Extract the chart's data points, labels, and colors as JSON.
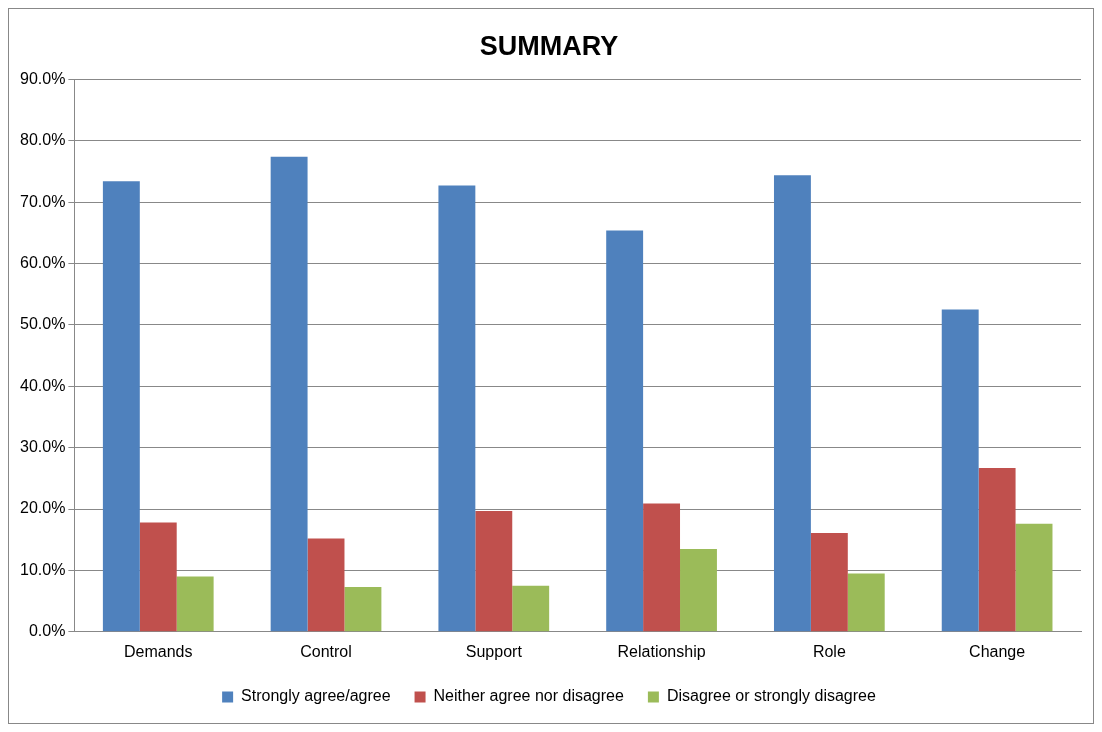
{
  "chart_data": {
    "type": "bar",
    "title": "SUMMARY",
    "categories": [
      "Demands",
      "Control",
      "Support",
      "Relationship",
      "Role",
      "Change"
    ],
    "series": [
      {
        "name": "Strongly agree/agree",
        "color": "#4f81bd",
        "values": [
          73.4,
          77.4,
          72.7,
          65.4,
          74.4,
          52.5
        ]
      },
      {
        "name": "Neither agree nor disagree",
        "color": "#c0504d",
        "values": [
          17.8,
          15.2,
          19.7,
          20.9,
          16.1,
          26.7
        ]
      },
      {
        "name": "Disagree or strongly disagree",
        "color": "#9bbb59",
        "values": [
          9.0,
          7.3,
          7.5,
          13.5,
          9.5,
          17.6
        ]
      }
    ],
    "ylim": [
      0,
      90
    ],
    "yticks": [
      {
        "value": 0,
        "label": "0.0%"
      },
      {
        "value": 10,
        "label": "10.0%"
      },
      {
        "value": 20,
        "label": "20.0%"
      },
      {
        "value": 30,
        "label": "30.0%"
      },
      {
        "value": 40,
        "label": "40.0%"
      },
      {
        "value": 50,
        "label": "50.0%"
      },
      {
        "value": 60,
        "label": "60.0%"
      },
      {
        "value": 70,
        "label": "70.0%"
      },
      {
        "value": 80,
        "label": "80.0%"
      },
      {
        "value": 90,
        "label": "90.0%"
      }
    ],
    "grid": "y",
    "legend": "bottom"
  }
}
